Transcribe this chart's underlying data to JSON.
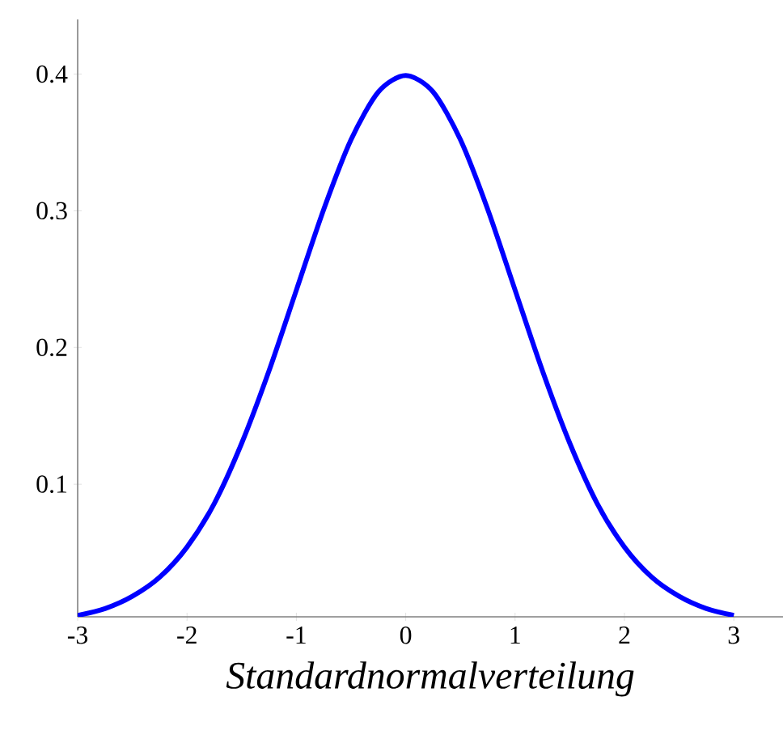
{
  "chart_data": {
    "type": "line",
    "xlabel": "Standardnormalverteilung",
    "x": [
      -3,
      -2.75,
      -2.5,
      -2.25,
      -2,
      -1.75,
      -1.5,
      -1.25,
      -1,
      -0.75,
      -0.5,
      -0.25,
      0,
      0.25,
      0.5,
      0.75,
      1,
      1.25,
      1.5,
      1.75,
      2,
      2.25,
      2.5,
      2.75,
      3
    ],
    "series": [
      {
        "color": "#0000ff",
        "values": [
          0.004,
          0.009,
          0.018,
          0.032,
          0.054,
          0.086,
          0.13,
          0.183,
          0.242,
          0.301,
          0.352,
          0.387,
          0.399,
          0.387,
          0.352,
          0.301,
          0.242,
          0.183,
          0.13,
          0.086,
          0.054,
          0.032,
          0.018,
          0.009,
          0.004
        ]
      }
    ],
    "xlim": [
      -3,
      3.45
    ],
    "ylim": [
      0.003,
      0.44
    ],
    "xticks": [
      -3,
      -2,
      -1,
      0,
      1,
      2,
      3
    ],
    "yticks": [
      0.1,
      0.2,
      0.3,
      0.4
    ],
    "grid": false,
    "marker": "none",
    "line_style": "solid"
  }
}
